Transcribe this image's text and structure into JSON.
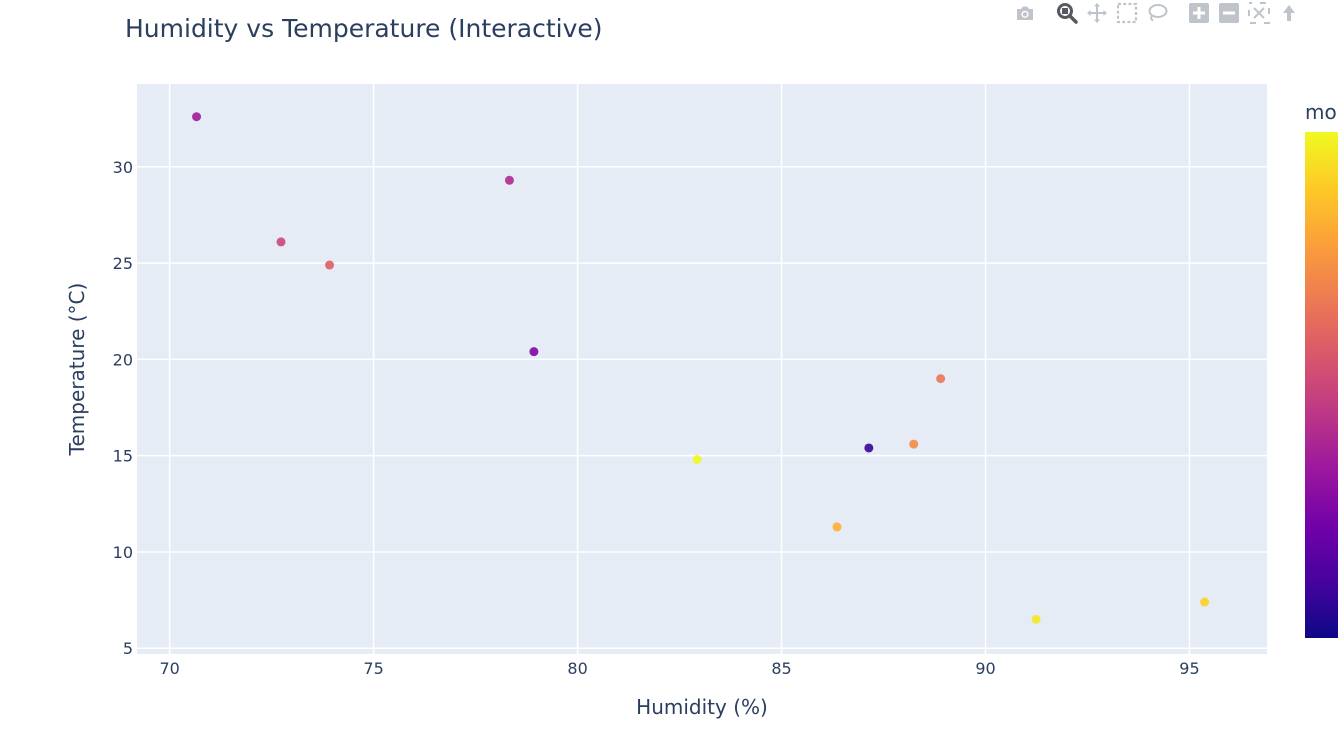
{
  "chart_data": {
    "type": "scatter",
    "title": "Humidity vs Temperature (Interactive)",
    "xlabel": "Humidity (%)",
    "ylabel": "Temperature (°C)",
    "xlim": [
      69.2,
      96.9
    ],
    "ylim": [
      4.7,
      34.3
    ],
    "xticks": [
      70,
      75,
      80,
      85,
      90,
      95
    ],
    "yticks": [
      5,
      10,
      15,
      20,
      25,
      30
    ],
    "xtick_labels": [
      "70",
      "75",
      "80",
      "85",
      "90",
      "95"
    ],
    "ytick_labels": [
      "5",
      "10",
      "15",
      "20",
      "25",
      "30"
    ],
    "grid": true,
    "colorbar": {
      "title": "mo",
      "colorscale": "plasma",
      "min": 0,
      "max": 1
    },
    "points": [
      {
        "x": 70.66,
        "y": 32.6,
        "c": 0.35
      },
      {
        "x": 72.73,
        "y": 26.1,
        "c": 0.5
      },
      {
        "x": 73.92,
        "y": 24.9,
        "c": 0.58
      },
      {
        "x": 78.33,
        "y": 29.3,
        "c": 0.4
      },
      {
        "x": 78.93,
        "y": 20.4,
        "c": 0.25
      },
      {
        "x": 82.93,
        "y": 14.8,
        "c": 1.0
      },
      {
        "x": 86.36,
        "y": 11.3,
        "c": 0.82
      },
      {
        "x": 87.14,
        "y": 15.4,
        "c": 0.08
      },
      {
        "x": 88.24,
        "y": 15.6,
        "c": 0.72
      },
      {
        "x": 88.9,
        "y": 19.0,
        "c": 0.66
      },
      {
        "x": 91.24,
        "y": 6.5,
        "c": 0.96
      },
      {
        "x": 95.37,
        "y": 7.4,
        "c": 0.9
      }
    ]
  },
  "modebar": {
    "icons": [
      "camera-icon",
      "zoom-icon",
      "pan-icon",
      "box-select-icon",
      "lasso-icon",
      "zoom-in-icon",
      "zoom-out-icon",
      "autoscale-icon"
    ],
    "color": "#bfc4ca",
    "active_color": "#555a60"
  },
  "colors": {
    "plot_bg": "#e5ecf6",
    "grid": "#ffffff",
    "text": "#2a3f5f"
  }
}
